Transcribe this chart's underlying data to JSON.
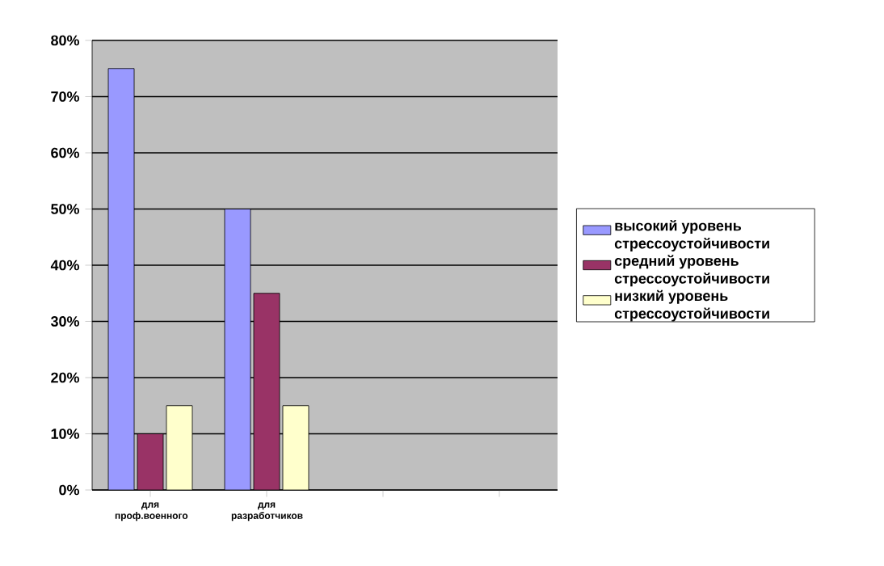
{
  "chart_data": {
    "type": "bar",
    "categories": [
      "для проф.военного",
      "для разработчиков",
      null,
      null
    ],
    "series": [
      {
        "name": "высокий уровень стрессоустойчивости",
        "color": "#9999ff",
        "values": [
          75,
          50,
          null,
          null
        ]
      },
      {
        "name": "средний уровень стрессоустойчивости",
        "color": "#993366",
        "values": [
          10,
          35,
          null,
          null
        ]
      },
      {
        "name": "низкий уровень стрессоустойчивости",
        "color": "#ffffcc",
        "values": [
          15,
          15,
          null,
          null
        ]
      }
    ],
    "ylim": [
      0,
      80
    ],
    "yticks": [
      {
        "value": 0,
        "label": "0%"
      },
      {
        "value": 10,
        "label": "10%"
      },
      {
        "value": 20,
        "label": "20%"
      },
      {
        "value": 30,
        "label": "30%"
      },
      {
        "value": 40,
        "label": "40%"
      },
      {
        "value": 50,
        "label": "50%"
      },
      {
        "value": 60,
        "label": "60%"
      },
      {
        "value": 70,
        "label": "70%"
      },
      {
        "value": 80,
        "label": "80%"
      }
    ],
    "grid": "y",
    "legend": "right"
  }
}
